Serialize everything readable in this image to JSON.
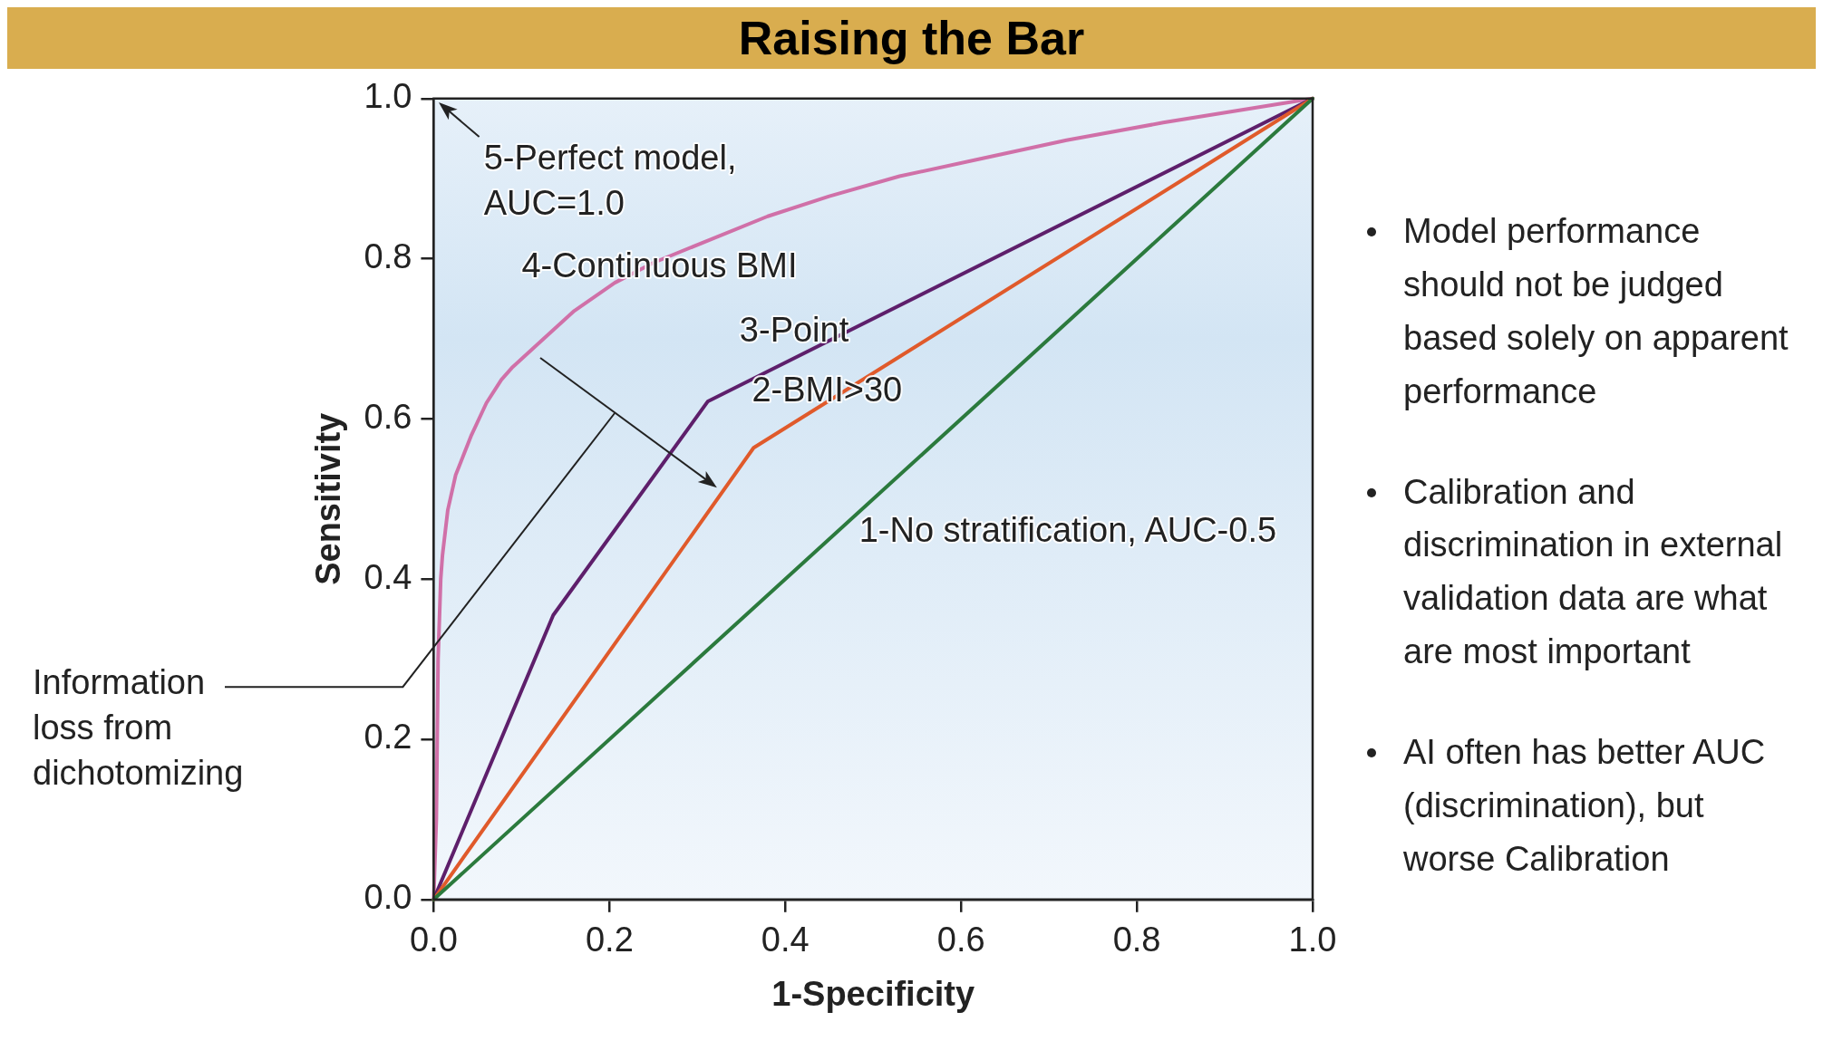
{
  "chart_data": {
    "type": "line",
    "title": "Raising the Bar",
    "xlabel": "1-Specificity",
    "ylabel": "Sensitivity",
    "xlim": [
      0,
      1
    ],
    "ylim": [
      0,
      1
    ],
    "xticks": [
      {
        "value": 0,
        "label": "0.0"
      },
      {
        "value": 0.2,
        "label": "0.2"
      },
      {
        "value": 0.4,
        "label": "0.4"
      },
      {
        "value": 0.6,
        "label": "0.6"
      },
      {
        "value": 0.8,
        "label": "0.8"
      },
      {
        "value": 1,
        "label": "1.0"
      }
    ],
    "yticks": [
      {
        "value": 0,
        "label": "0.0"
      },
      {
        "value": 0.2,
        "label": "0.2"
      },
      {
        "value": 0.4,
        "label": "0.4"
      },
      {
        "value": 0.6,
        "label": "0.6"
      },
      {
        "value": 0.8,
        "label": "0.8"
      },
      {
        "value": 1,
        "label": "1.0"
      }
    ],
    "grid": false,
    "legend": false,
    "marker": "none",
    "line_style": "solid",
    "series": [
      {
        "name": "1-No stratification, AUC-0.5",
        "color": "#2b7a3d",
        "x": [
          0,
          1
        ],
        "values": [
          0,
          1
        ]
      },
      {
        "name": "2-BMI>30",
        "color": "#e05a2b",
        "x": [
          0,
          0.364,
          1
        ],
        "values": [
          0,
          0.564,
          1
        ]
      },
      {
        "name": "3-Point",
        "color": "#5e1f6b",
        "x": [
          0,
          0.136,
          0.312,
          1
        ],
        "values": [
          0,
          0.355,
          0.622,
          1
        ]
      },
      {
        "name": "4-Continuous BMI",
        "color": "#d070a8",
        "x": [
          0,
          0.003,
          0.005,
          0.008,
          0.01,
          0.016,
          0.025,
          0.043,
          0.06,
          0.077,
          0.09,
          0.121,
          0.16,
          0.206,
          0.25,
          0.315,
          0.38,
          0.45,
          0.53,
          0.627,
          0.72,
          0.83,
          1
        ],
        "values": [
          0,
          0.1,
          0.3,
          0.4,
          0.43,
          0.486,
          0.53,
          0.58,
          0.62,
          0.649,
          0.665,
          0.696,
          0.735,
          0.77,
          0.795,
          0.824,
          0.853,
          0.878,
          0.903,
          0.926,
          0.948,
          0.97,
          1
        ]
      }
    ],
    "annotations": [
      "5-Perfect model, AUC=1.0",
      "Information loss from dichotomizing",
      "Model performance should not be judged based solely on apparent performance",
      "Calibration and discrimination in external validation data are what are most important",
      "AI often has better AUC (discrimination), but worse  Calibration"
    ]
  }
}
